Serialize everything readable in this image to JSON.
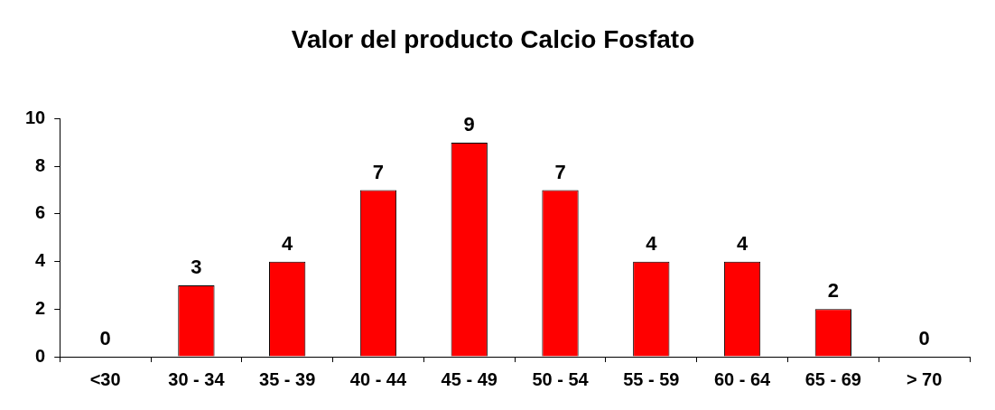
{
  "chart_data": {
    "type": "bar",
    "title": "Valor del producto Calcio Fosfato",
    "categories": [
      "<30",
      "30 - 34",
      "35 - 39",
      "40 - 44",
      "45 - 49",
      "50 - 54",
      "55 - 59",
      "60 - 64",
      "65 - 69",
      "> 70"
    ],
    "values": [
      0,
      3,
      4,
      7,
      9,
      7,
      4,
      4,
      2,
      0
    ],
    "color": "#ff0000",
    "ylim": [
      0,
      10
    ],
    "yticks": [
      0,
      2,
      4,
      6,
      8,
      10
    ],
    "grid": false,
    "legend": false,
    "data_labels": true
  }
}
